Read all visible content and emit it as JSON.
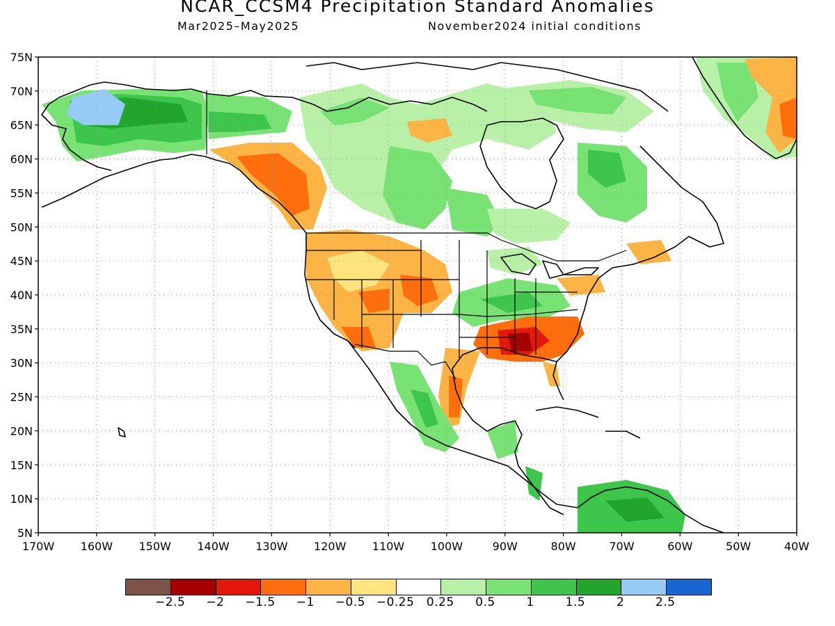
{
  "header": {
    "title": "NCAR_CCSM4 Precipitation Standard Anomalies",
    "period": "Mar2025–May2025",
    "init": "November2024 initial conditions"
  },
  "axes": {
    "lat_labels": [
      "75N",
      "70N",
      "65N",
      "60N",
      "55N",
      "50N",
      "45N",
      "40N",
      "35N",
      "30N",
      "25N",
      "20N",
      "15N",
      "10N",
      "5N"
    ],
    "lon_labels": [
      "170W",
      "160W",
      "150W",
      "140W",
      "130W",
      "120W",
      "110W",
      "100W",
      "90W",
      "80W",
      "70W",
      "60W",
      "50W",
      "40W"
    ]
  },
  "legend": {
    "colors": [
      "#7b5447",
      "#a40000",
      "#e3170a",
      "#ff6e0c",
      "#fcb444",
      "#ffe37c",
      "#ffffff",
      "#b7f0a6",
      "#79e275",
      "#3ec54b",
      "#21a52c",
      "#95cbf5",
      "#1766d1"
    ],
    "labels": [
      "−2.5",
      "−2",
      "−1.5",
      "−1",
      "−0.5",
      "−0.25",
      "0.25",
      "0.5",
      "1",
      "1.5",
      "2",
      "2.5"
    ]
  }
}
